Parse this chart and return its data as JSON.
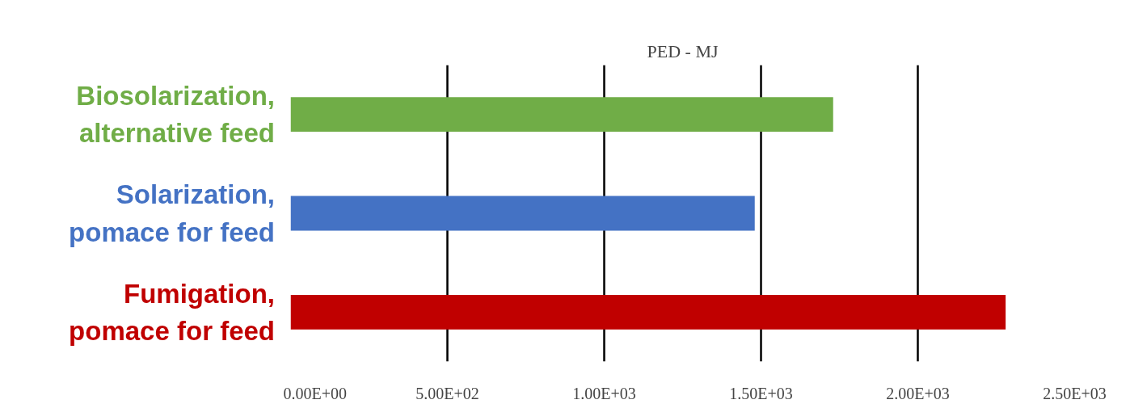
{
  "chart_data": {
    "type": "bar",
    "orientation": "horizontal",
    "title": "PED - MJ",
    "categories": [
      "Biosolarization,\nalternative feed",
      "Solarization,\npomace for feed",
      "Fumigation,\npomace for feed"
    ],
    "values": [
      1730,
      1480,
      2280
    ],
    "colors": [
      "#70ad47",
      "#4472c4",
      "#c00000"
    ],
    "xlim": [
      0,
      2500
    ],
    "xticks": [
      {
        "value": 0,
        "label": "0.00E+00"
      },
      {
        "value": 500,
        "label": "5.00E+02"
      },
      {
        "value": 1000,
        "label": "1.00E+03"
      },
      {
        "value": 1500,
        "label": "1.50E+03"
      },
      {
        "value": 2000,
        "label": "2.00E+03"
      },
      {
        "value": 2500,
        "label": "2.50E+03"
      }
    ],
    "grid": "x"
  }
}
